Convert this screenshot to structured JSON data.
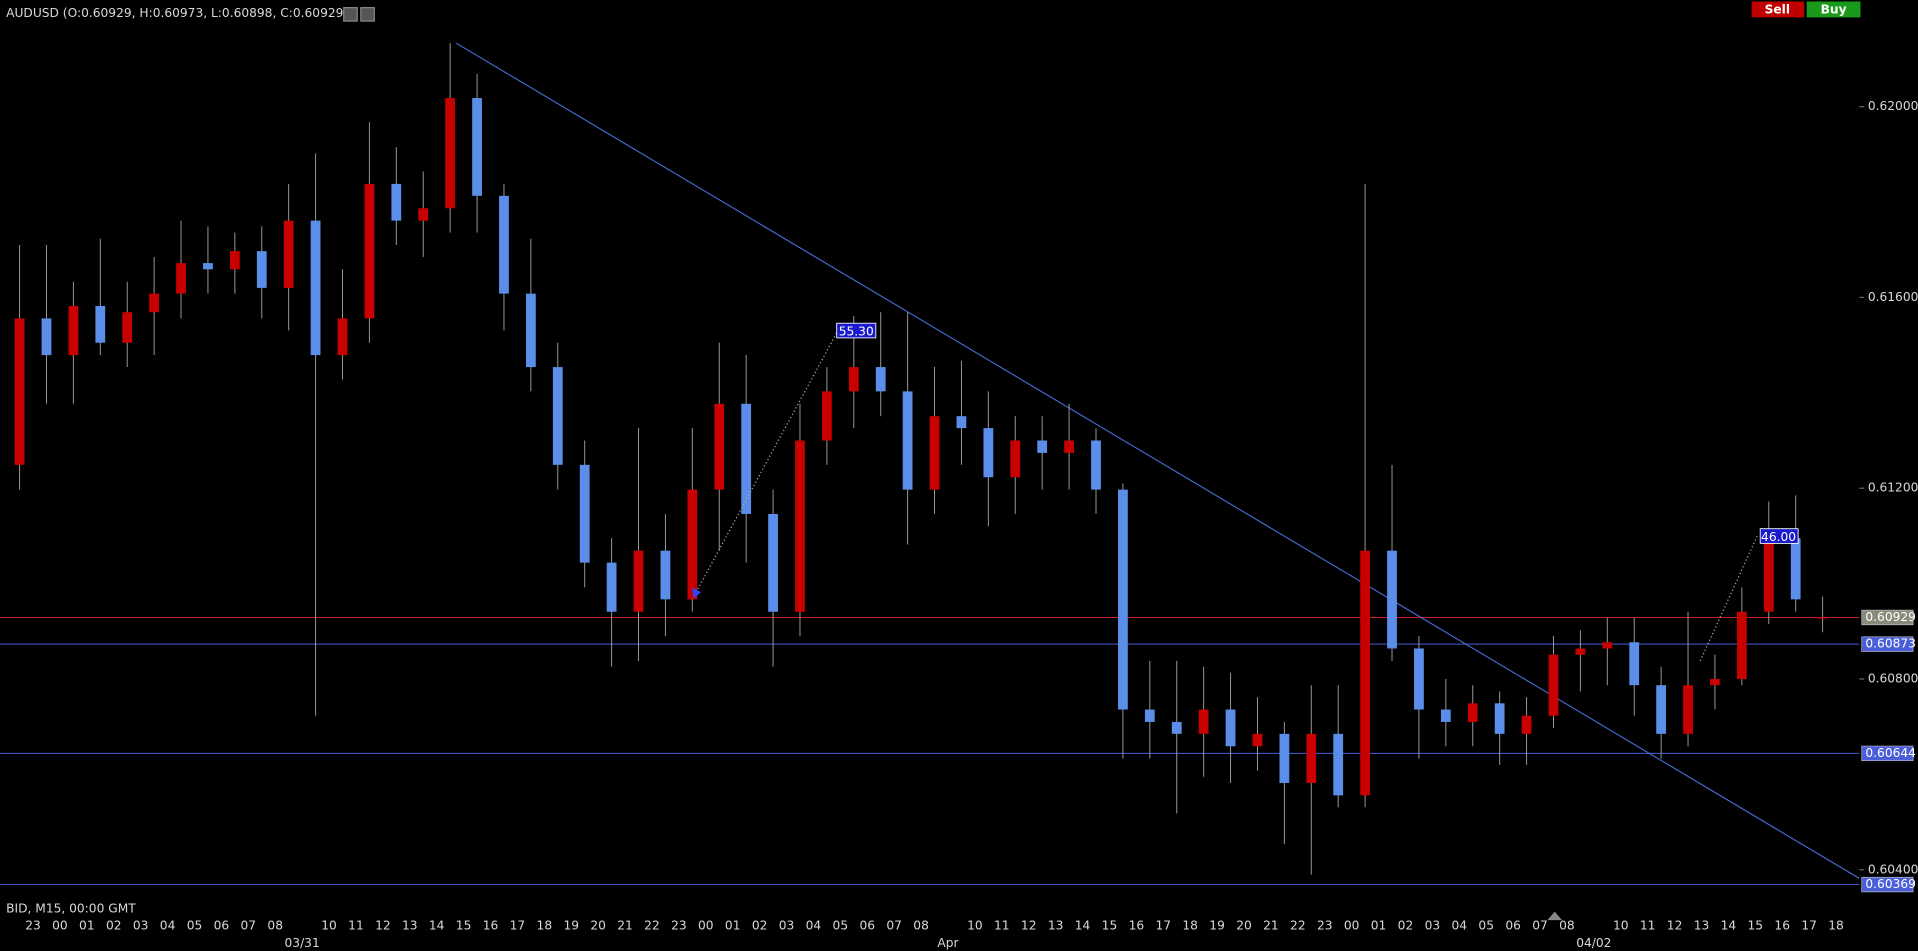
{
  "chart_data": {
    "type": "candlestick",
    "title": "AUDUSD (O:0.60929, H:0.60973, L:0.60898, C:0.60929)",
    "subtitle": "BID, M15, 00:00 GMT",
    "buttons": [
      "Sell",
      "Buy"
    ],
    "up_color": "#c80000",
    "down_color": "#5b8ee8",
    "ylim": [
      0.60338,
      0.62223
    ],
    "yticks": [
      {
        "value": 0.62,
        "label": "0.62000"
      },
      {
        "value": 0.616,
        "label": "0.61600"
      },
      {
        "value": 0.612,
        "label": "0.61200"
      },
      {
        "value": 0.608,
        "label": "0.60800"
      },
      {
        "value": 0.604,
        "label": "0.60400"
      }
    ],
    "categories": [
      "23",
      "00",
      "01",
      "02",
      "03",
      "04",
      "05",
      "06",
      "07",
      "08",
      null,
      "10",
      "11",
      "12",
      "13",
      "14",
      "15",
      "16",
      "17",
      "18",
      "19",
      "20",
      "21",
      "22",
      "23",
      "00",
      "01",
      "02",
      "03",
      "04",
      "05",
      "06",
      "07",
      "08",
      null,
      "10",
      "11",
      "12",
      "13",
      "14",
      "15",
      "16",
      "17",
      "18",
      "19",
      "20",
      "21",
      "22",
      "23",
      "00",
      "01",
      "02",
      "03",
      "04",
      "05",
      "06",
      "07",
      "08",
      null,
      "10",
      "11",
      "12",
      "13",
      "14",
      "15",
      "16",
      "17",
      "18"
    ],
    "date_categories": [
      null,
      null,
      null,
      null,
      null,
      null,
      null,
      null,
      null,
      null,
      "03/31",
      null,
      null,
      null,
      null,
      null,
      null,
      null,
      null,
      null,
      null,
      null,
      null,
      null,
      null,
      null,
      null,
      null,
      null,
      null,
      null,
      null,
      null,
      null,
      "Apr",
      null,
      null,
      null,
      null,
      null,
      null,
      null,
      null,
      null,
      null,
      null,
      null,
      null,
      null,
      null,
      null,
      null,
      null,
      null,
      null,
      null,
      null,
      null,
      "04/02",
      null,
      null,
      null,
      null,
      null,
      null,
      null,
      null,
      null
    ],
    "candles": [
      [
        0.61249,
        0.6171,
        0.61197,
        0.61556
      ],
      [
        0.61556,
        0.6171,
        0.61377,
        0.61479
      ],
      [
        0.61479,
        0.61633,
        0.61377,
        0.61582
      ],
      [
        0.61582,
        0.61723,
        0.61479,
        0.61505
      ],
      [
        0.61505,
        0.61633,
        0.61454,
        0.61569
      ],
      [
        0.61569,
        0.61685,
        0.61479,
        0.61608
      ],
      [
        0.61608,
        0.61761,
        0.61556,
        0.61672
      ],
      [
        0.61672,
        0.61749,
        0.61608,
        0.61659
      ],
      [
        0.61659,
        0.61736,
        0.61608,
        0.61697
      ],
      [
        0.61697,
        0.61749,
        0.61556,
        0.6162
      ],
      [
        0.6162,
        0.61838,
        0.61531,
        0.61761
      ],
      [
        0.61761,
        0.61902,
        0.60723,
        0.61479
      ],
      [
        0.61479,
        0.61659,
        0.61428,
        0.61556
      ],
      [
        0.61556,
        0.61967,
        0.61505,
        0.61838
      ],
      [
        0.61838,
        0.61915,
        0.6171,
        0.61761
      ],
      [
        0.61761,
        0.61864,
        0.61685,
        0.61787
      ],
      [
        0.61787,
        0.62133,
        0.61736,
        0.62018
      ],
      [
        0.62018,
        0.62069,
        0.61736,
        0.61813
      ],
      [
        0.61813,
        0.61838,
        0.61531,
        0.61608
      ],
      [
        0.61608,
        0.61723,
        0.61403,
        0.61454
      ],
      [
        0.61454,
        0.61505,
        0.61197,
        0.61249
      ],
      [
        0.61249,
        0.613,
        0.60992,
        0.61044
      ],
      [
        0.61044,
        0.61095,
        0.60826,
        0.60941
      ],
      [
        0.60941,
        0.61326,
        0.60838,
        0.61069
      ],
      [
        0.61069,
        0.61146,
        0.6089,
        0.60967
      ],
      [
        0.60967,
        0.61326,
        0.60941,
        0.61197
      ],
      [
        0.61197,
        0.61505,
        0.61069,
        0.61377
      ],
      [
        0.61377,
        0.61479,
        0.61044,
        0.61146
      ],
      [
        0.61146,
        0.61197,
        0.60826,
        0.60941
      ],
      [
        0.60941,
        0.61377,
        0.6089,
        0.613
      ],
      [
        0.613,
        0.61454,
        0.61249,
        0.61403
      ],
      [
        0.61403,
        0.61561,
        0.61326,
        0.61454
      ],
      [
        0.61454,
        0.61569,
        0.61351,
        0.61403
      ],
      [
        0.61403,
        0.61569,
        0.61082,
        0.61197
      ],
      [
        0.61197,
        0.61454,
        0.61146,
        0.61351
      ],
      [
        0.61351,
        0.61467,
        0.61249,
        0.61326
      ],
      [
        0.61326,
        0.61403,
        0.6112,
        0.61223
      ],
      [
        0.61223,
        0.61351,
        0.61146,
        0.613
      ],
      [
        0.613,
        0.61351,
        0.61197,
        0.61274
      ],
      [
        0.61274,
        0.61377,
        0.61197,
        0.613
      ],
      [
        0.613,
        0.61326,
        0.61146,
        0.61197
      ],
      [
        0.61197,
        0.6121,
        0.60633,
        0.60736
      ],
      [
        0.60736,
        0.60838,
        0.60633,
        0.6071
      ],
      [
        0.6071,
        0.60838,
        0.60518,
        0.60685
      ],
      [
        0.60685,
        0.60826,
        0.60595,
        0.60736
      ],
      [
        0.60736,
        0.60813,
        0.60582,
        0.60659
      ],
      [
        0.60659,
        0.60762,
        0.60608,
        0.60685
      ],
      [
        0.60685,
        0.6071,
        0.60454,
        0.60582
      ],
      [
        0.60582,
        0.60787,
        0.6039,
        0.60685
      ],
      [
        0.60685,
        0.60787,
        0.60531,
        0.60556
      ],
      [
        0.60556,
        0.61838,
        0.60531,
        0.61069
      ],
      [
        0.61069,
        0.61249,
        0.60838,
        0.60864
      ],
      [
        0.60864,
        0.6089,
        0.60633,
        0.60736
      ],
      [
        0.60736,
        0.608,
        0.60659,
        0.6071
      ],
      [
        0.6071,
        0.60787,
        0.60659,
        0.60749
      ],
      [
        0.60749,
        0.60774,
        0.6062,
        0.60685
      ],
      [
        0.60685,
        0.60762,
        0.6062,
        0.60723
      ],
      [
        0.60723,
        0.6089,
        0.60697,
        0.60851
      ],
      [
        0.60851,
        0.60902,
        0.60774,
        0.60864
      ],
      [
        0.60864,
        0.60928,
        0.60787,
        0.60877
      ],
      [
        0.60877,
        0.60928,
        0.60723,
        0.60787
      ],
      [
        0.60787,
        0.60826,
        0.60633,
        0.60685
      ],
      [
        0.60685,
        0.60941,
        0.60659,
        0.60787
      ],
      [
        0.60787,
        0.60851,
        0.60736,
        0.608
      ],
      [
        0.608,
        0.60992,
        0.60787,
        0.60941
      ],
      [
        0.60941,
        0.61172,
        0.60915,
        0.61095
      ],
      [
        0.61095,
        0.61185,
        0.60941,
        0.60967
      ],
      [
        0.60929,
        0.60973,
        0.60898,
        0.60929
      ]
    ],
    "price_lines": [
      {
        "value": 0.60929,
        "label": "0.60929",
        "color": "#c82020",
        "label_color": "#8a8a7a"
      },
      {
        "value": 0.60873,
        "label": "0.60873",
        "color": "#4a5ed8",
        "label_color": "#4a5ed8"
      },
      {
        "value": 0.60644,
        "label": "0.60644",
        "color": "#4a5ed8",
        "label_color": "#4a5ed8"
      },
      {
        "value": 0.60369,
        "label": "0.60369",
        "color": "#4a5ed8",
        "label_color": "#4a5ed8"
      }
    ],
    "trendline": {
      "from": 0.62133,
      "to": 0.60382,
      "color": "#4a6ed8"
    },
    "measurements": [
      {
        "label": "55.30"
      },
      {
        "label": "46.00"
      }
    ]
  }
}
